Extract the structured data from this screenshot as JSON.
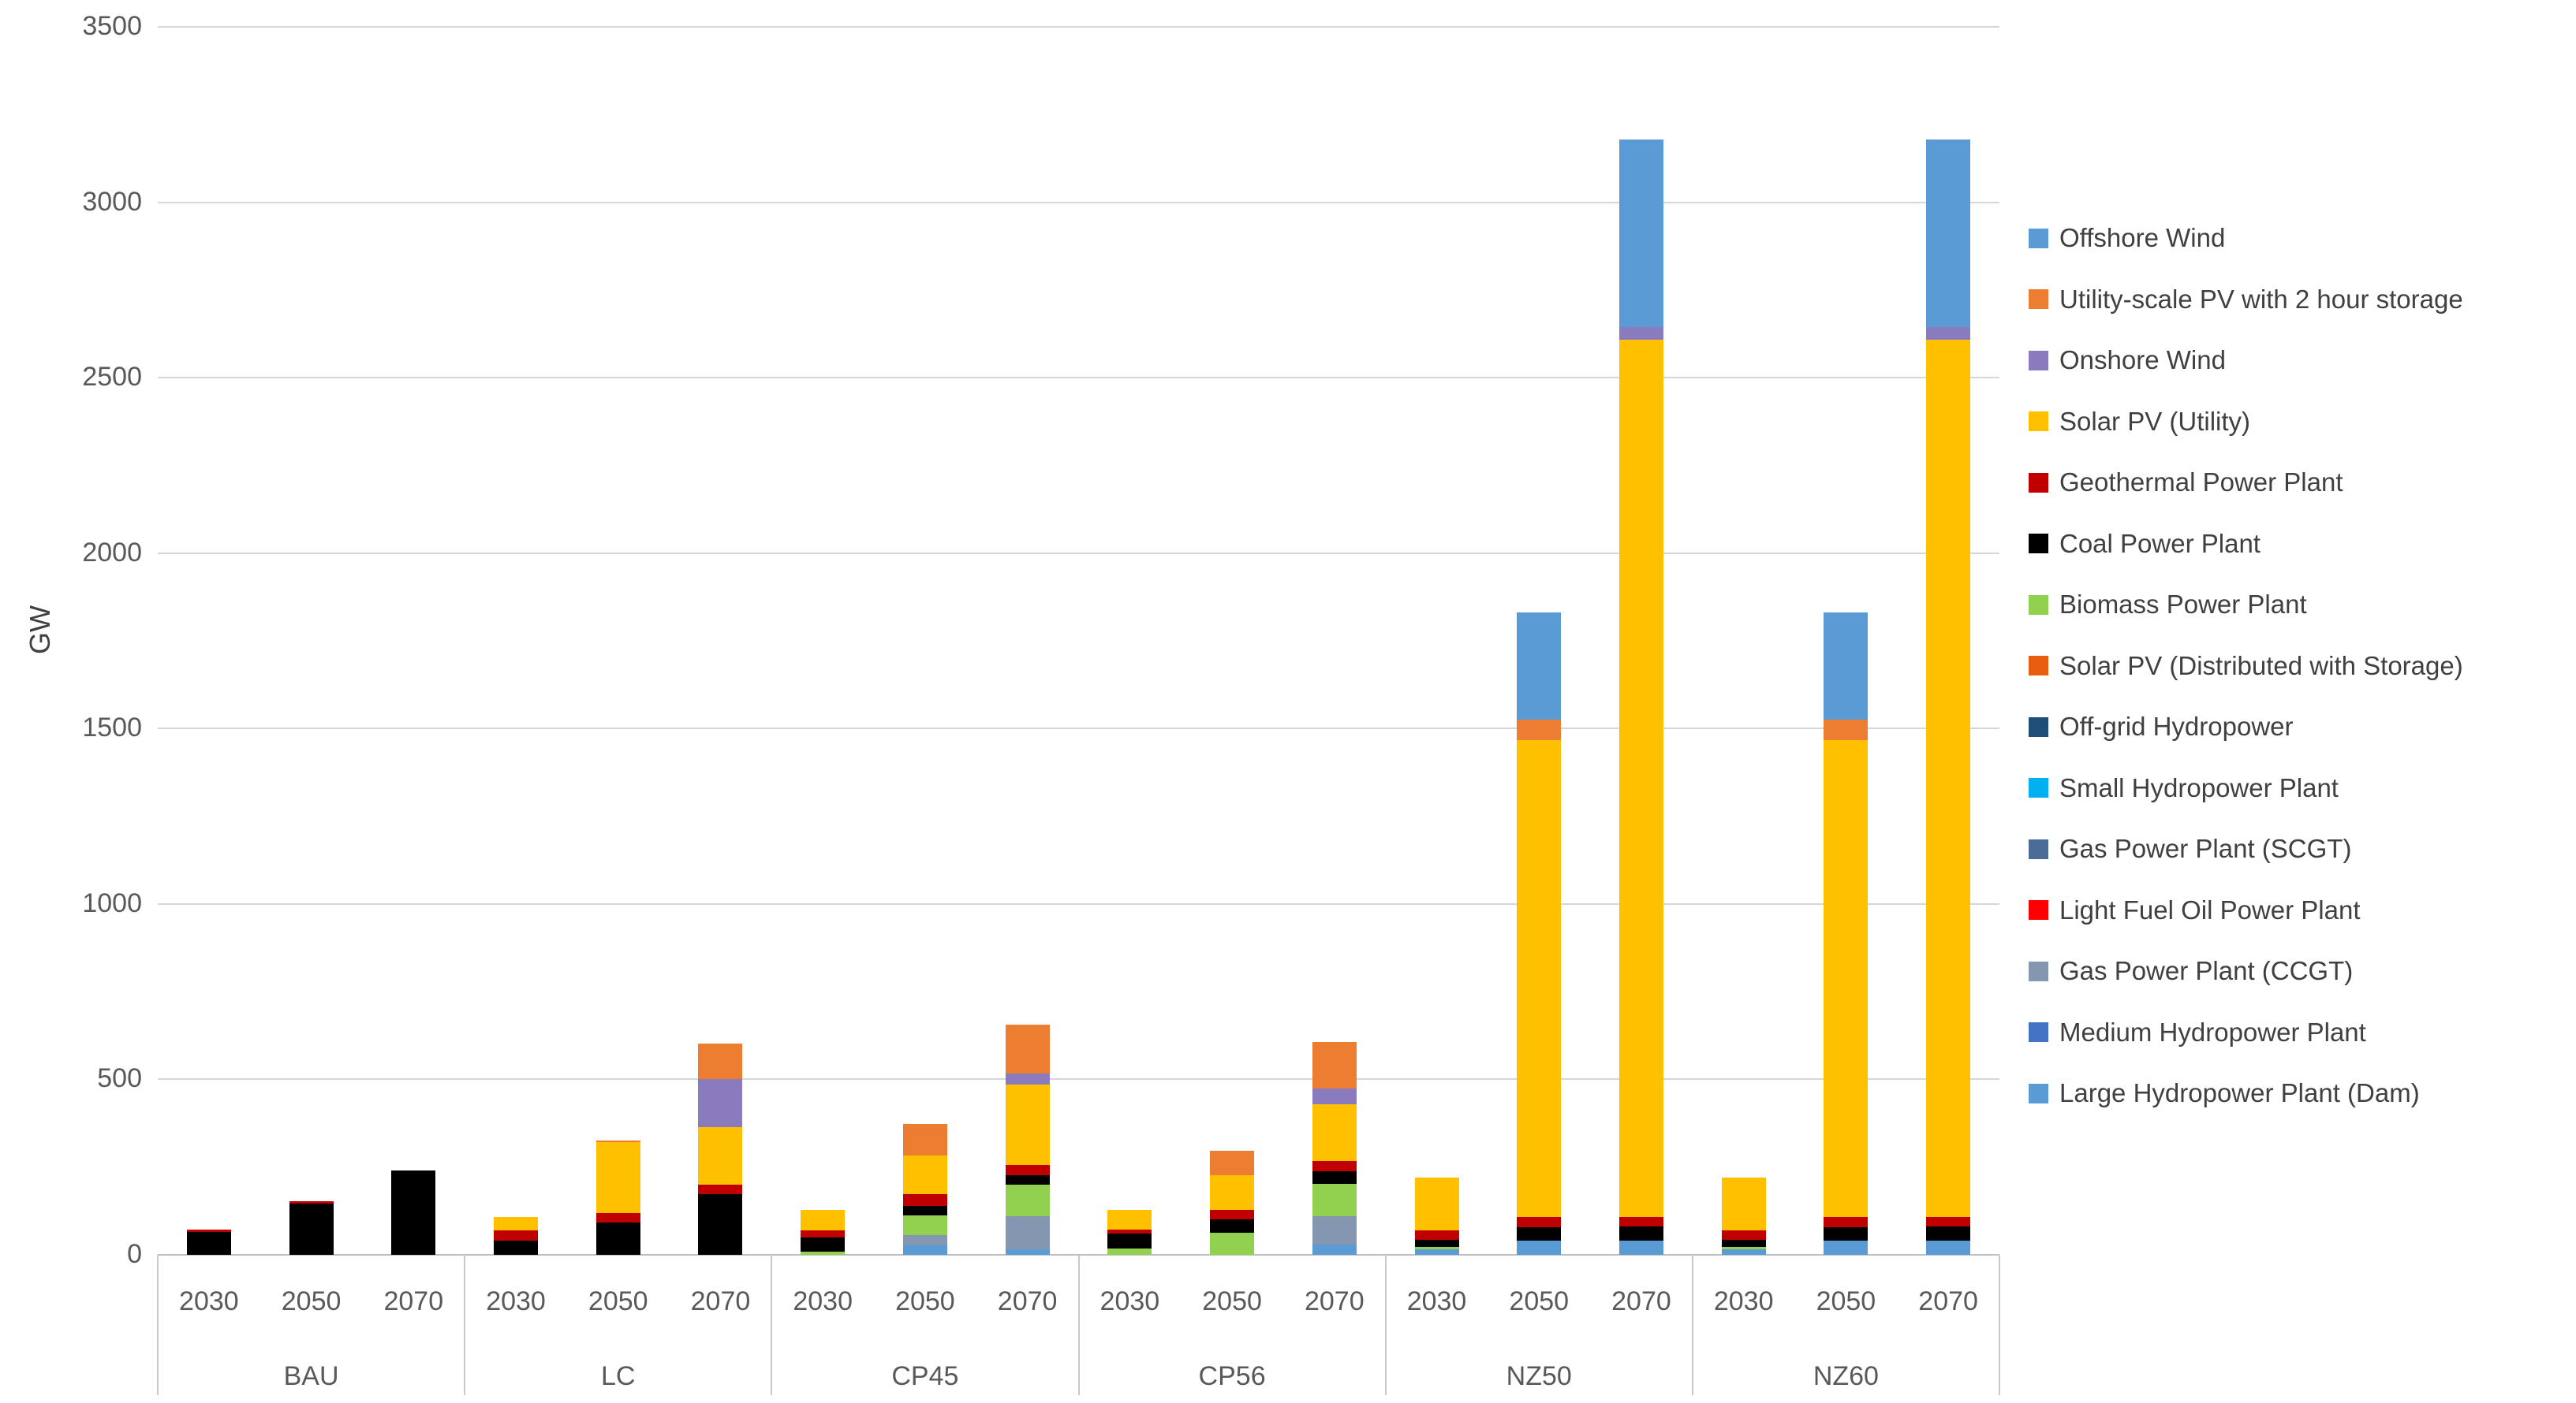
{
  "page": {
    "background": "#ffffff"
  },
  "axis": {
    "y_title": "GW",
    "tick_color": "#595959",
    "gridline_color": "#d6d6d6",
    "axisline_color": "#bfbfbf"
  },
  "chart_data": {
    "type": "bar",
    "stacked": true,
    "title": "",
    "xlabel": "",
    "ylabel": "GW",
    "ylim": [
      0,
      3500
    ],
    "yticks": [
      0,
      500,
      1000,
      1500,
      2000,
      2500,
      3000,
      3500
    ],
    "grid": true,
    "legend_position": "right",
    "legend_order": "reverse-of-stacking",
    "groups": [
      "BAU",
      "LC",
      "CP45",
      "CP56",
      "NZ50",
      "NZ60"
    ],
    "years": [
      "2030",
      "2050",
      "2070"
    ],
    "bar_order_note": "18 bars = groups x years; series listed bottom-to-top of stack; values in GW",
    "series": [
      {
        "name": "Large Hydropower Plant (Dam)",
        "color": "#5B9BD5",
        "values": [
          0,
          0,
          0,
          0,
          0,
          0,
          0,
          26,
          15,
          0,
          0,
          30,
          15,
          40,
          40,
          15,
          40,
          40
        ]
      },
      {
        "name": "Medium Hydropower Plant",
        "color": "#4472C4",
        "values": [
          0,
          0,
          0,
          0,
          0,
          0,
          0,
          0,
          0,
          0,
          0,
          0,
          0,
          0,
          0,
          0,
          0,
          0
        ]
      },
      {
        "name": "Gas Power Plant (CCGT)",
        "color": "#8496B0",
        "values": [
          0,
          0,
          0,
          0,
          0,
          0,
          0,
          31,
          96,
          0,
          0,
          81,
          0,
          0,
          0,
          0,
          0,
          0
        ]
      },
      {
        "name": "Light Fuel Oil Power Plant",
        "color": "#FF0000",
        "values": [
          0,
          0,
          0,
          0,
          0,
          0,
          0,
          0,
          0,
          0,
          0,
          0,
          0,
          0,
          0,
          0,
          0,
          0
        ]
      },
      {
        "name": "Gas Power Plant (SCGT)",
        "color": "#4A6C96",
        "values": [
          0,
          0,
          0,
          0,
          0,
          0,
          0,
          0,
          0,
          0,
          0,
          0,
          0,
          0,
          0,
          0,
          0,
          0
        ]
      },
      {
        "name": "Small Hydropower Plant",
        "color": "#00B0F0",
        "values": [
          0,
          0,
          0,
          0,
          0,
          0,
          0,
          0,
          0,
          0,
          0,
          0,
          0,
          0,
          0,
          0,
          0,
          0
        ]
      },
      {
        "name": "Off-grid Hydropower",
        "color": "#1F4E79",
        "values": [
          0,
          0,
          0,
          0,
          0,
          0,
          0,
          0,
          0,
          0,
          0,
          0,
          0,
          0,
          0,
          0,
          0,
          0
        ]
      },
      {
        "name": "Solar PV (Distributed with Storage)",
        "color": "#E85D0E",
        "values": [
          0,
          0,
          0,
          0,
          0,
          0,
          0,
          0,
          0,
          0,
          0,
          0,
          0,
          0,
          0,
          0,
          0,
          0
        ]
      },
      {
        "name": "Biomass Power Plant",
        "color": "#92D050",
        "values": [
          0,
          0,
          0,
          0,
          0,
          0,
          10,
          56,
          89,
          17,
          63,
          91,
          8,
          0,
          0,
          8,
          0,
          0
        ]
      },
      {
        "name": "Coal Power Plant",
        "color": "#000000",
        "values": [
          65,
          145,
          240,
          41,
          92,
          174,
          39,
          27,
          26,
          43,
          38,
          36,
          20,
          38,
          40,
          20,
          38,
          40
        ]
      },
      {
        "name": "Geothermal Power Plant",
        "color": "#C00000",
        "values": [
          7,
          7,
          0,
          28,
          26,
          27,
          20,
          33,
          30,
          12,
          28,
          29,
          27,
          30,
          28,
          27,
          30,
          28
        ]
      },
      {
        "name": "Solar PV (Utility)",
        "color": "#FFC000",
        "values": [
          0,
          0,
          0,
          39,
          203,
          164,
          59,
          110,
          230,
          55,
          99,
          162,
          150,
          1358,
          2500,
          150,
          1358,
          2500
        ]
      },
      {
        "name": "Onshore Wind",
        "color": "#8A7BBE",
        "values": [
          0,
          0,
          0,
          0,
          0,
          135,
          0,
          0,
          30,
          0,
          0,
          46,
          0,
          0,
          36,
          0,
          0,
          36
        ]
      },
      {
        "name": "Utility-scale PV with 2 hour storage",
        "color": "#ED7D31",
        "values": [
          0,
          0,
          0,
          0,
          4,
          102,
          0,
          90,
          140,
          0,
          68,
          132,
          0,
          60,
          0,
          0,
          60,
          0
        ]
      },
      {
        "name": "Offshore Wind",
        "color": "#5B9BD5",
        "values": [
          0,
          0,
          0,
          0,
          0,
          0,
          0,
          0,
          0,
          0,
          0,
          0,
          0,
          304,
          535,
          0,
          304,
          535
        ]
      }
    ],
    "bar_totals": [
      72,
      152,
      240,
      108,
      325,
      602,
      128,
      373,
      656,
      127,
      296,
      607,
      220,
      1830,
      3179,
      220,
      1830,
      3179
    ]
  }
}
